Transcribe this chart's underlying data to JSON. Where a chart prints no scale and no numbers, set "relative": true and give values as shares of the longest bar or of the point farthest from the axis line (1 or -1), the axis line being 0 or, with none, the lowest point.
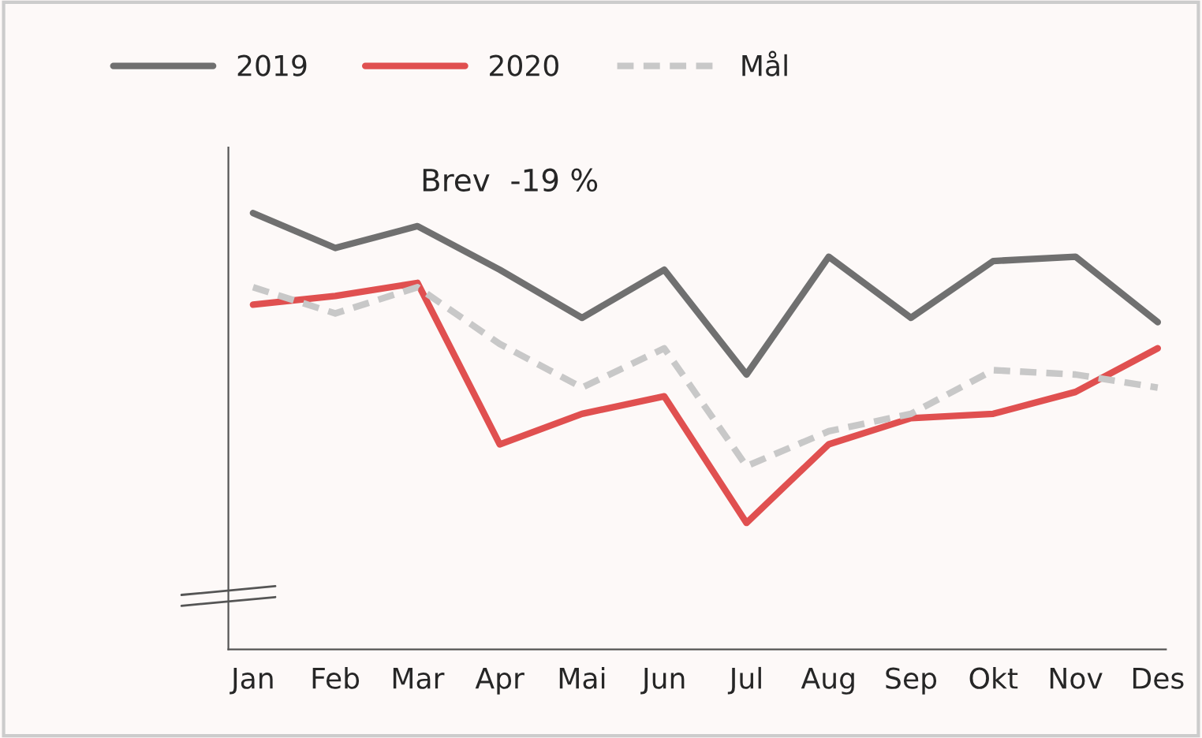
{
  "chart_data": {
    "type": "line",
    "title": "Brev  -19 %",
    "relative": true,
    "legend": "top left",
    "grid": false,
    "tick_labels": "x",
    "marker": "none",
    "categories": [
      "Jan",
      "Feb",
      "Mar",
      "Apr",
      "Mai",
      "Jun",
      "Jul",
      "Aug",
      "Sep",
      "Okt",
      "Nov",
      "Des"
    ],
    "series": [
      {
        "name": "2019",
        "color": "#707070",
        "line_style": "solid",
        "values": [
          1.0,
          0.92,
          0.97,
          0.87,
          0.76,
          0.87,
          0.63,
          0.9,
          0.76,
          0.89,
          0.9,
          0.75
        ]
      },
      {
        "name": "2020",
        "color": "#e05050",
        "line_style": "solid",
        "values": [
          0.79,
          0.81,
          0.84,
          0.47,
          0.54,
          0.58,
          0.29,
          0.47,
          0.53,
          0.54,
          0.59,
          0.69
        ]
      },
      {
        "name": "Mål",
        "color": "#c8c8c8",
        "line_style": "dashed",
        "values": [
          0.83,
          0.77,
          0.83,
          0.7,
          0.6,
          0.69,
          0.42,
          0.5,
          0.54,
          0.64,
          0.63,
          0.6
        ]
      }
    ]
  }
}
